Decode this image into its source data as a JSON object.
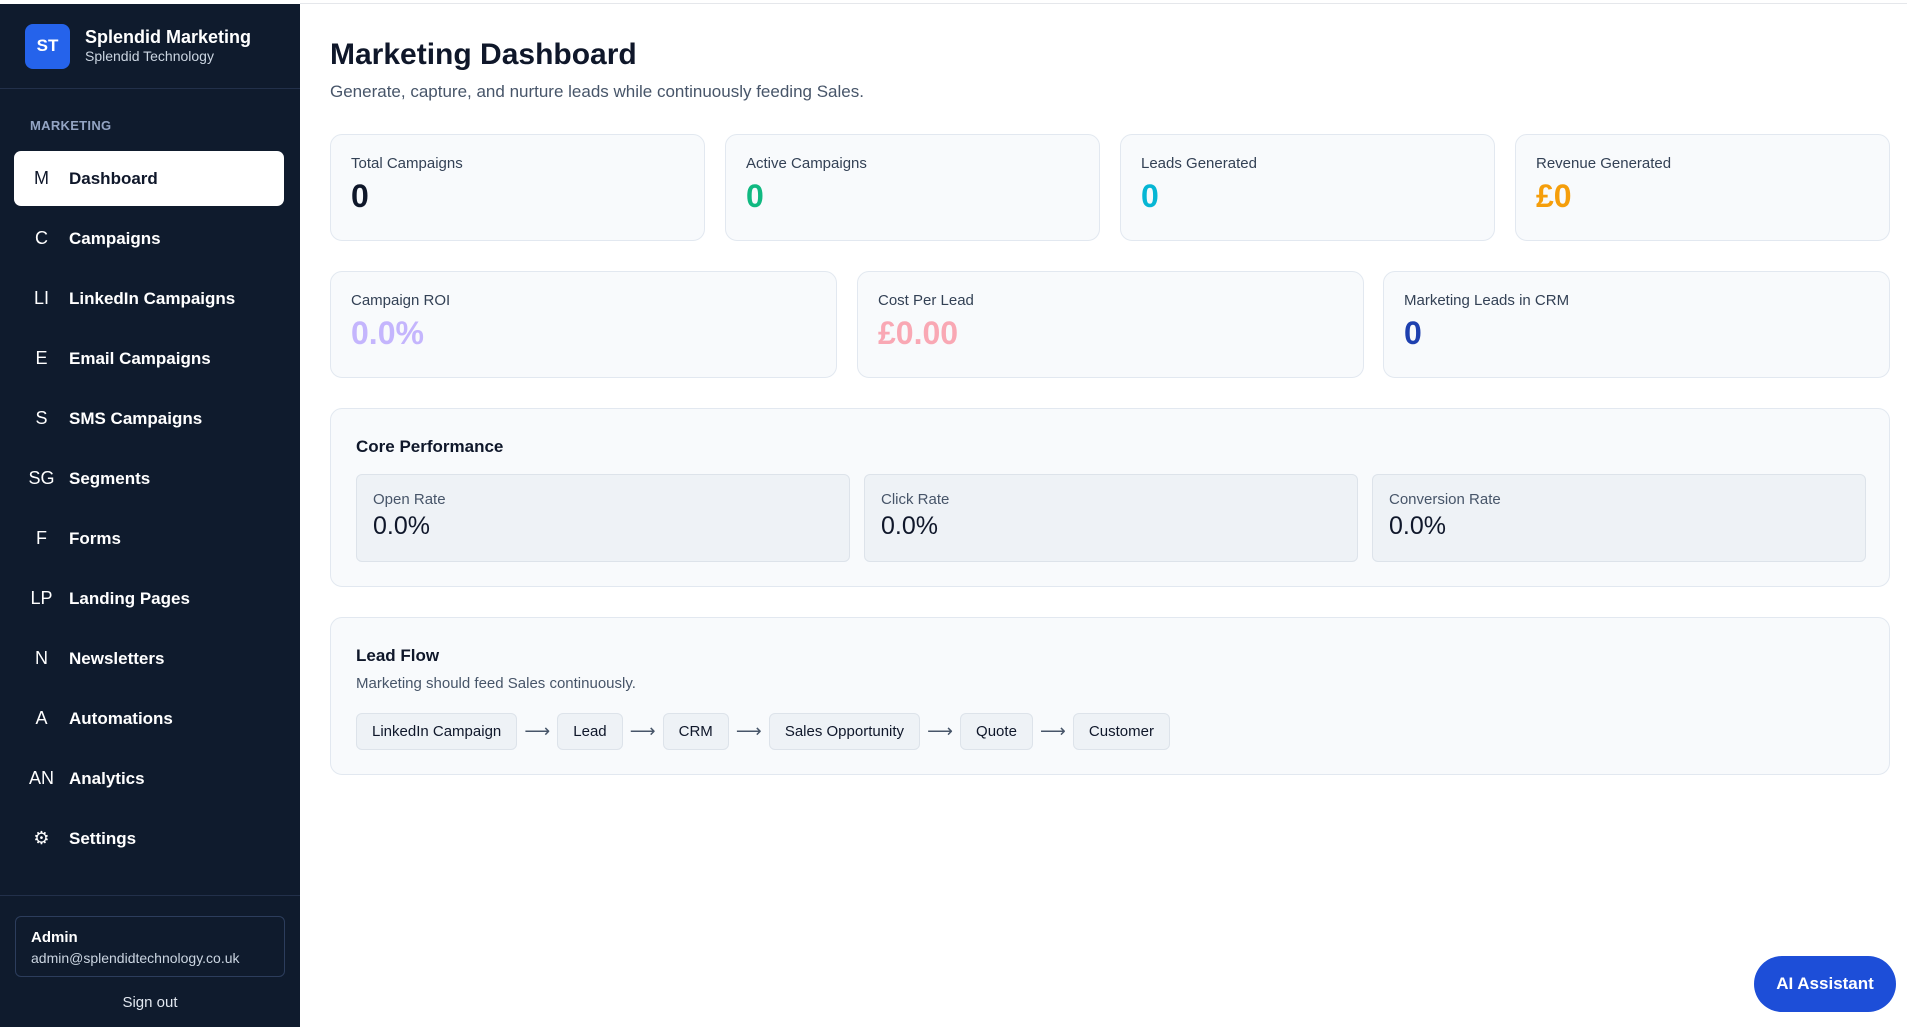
{
  "brand": {
    "logo": "ST",
    "title": "Splendid Marketing",
    "subtitle": "Splendid Technology"
  },
  "sidebar": {
    "section_label": "MARKETING",
    "items": [
      {
        "icon": "M",
        "label": "Dashboard",
        "active": true
      },
      {
        "icon": "C",
        "label": "Campaigns"
      },
      {
        "icon": "LI",
        "label": "LinkedIn Campaigns"
      },
      {
        "icon": "E",
        "label": "Email Campaigns"
      },
      {
        "icon": "S",
        "label": "SMS Campaigns"
      },
      {
        "icon": "SG",
        "label": "Segments"
      },
      {
        "icon": "F",
        "label": "Forms"
      },
      {
        "icon": "LP",
        "label": "Landing Pages"
      },
      {
        "icon": "N",
        "label": "Newsletters"
      },
      {
        "icon": "A",
        "label": "Automations"
      },
      {
        "icon": "AN",
        "label": "Analytics"
      },
      {
        "icon": "⚙",
        "label": "Settings"
      }
    ],
    "user": {
      "name": "Admin",
      "email": "admin@splendidtechnology.co.uk"
    },
    "signout": "Sign out"
  },
  "header": {
    "title": "Marketing Dashboard",
    "subtitle": "Generate, capture, and nurture leads while continuously feeding Sales."
  },
  "stats_row1": [
    {
      "label": "Total Campaigns",
      "value": "0",
      "color": "#0f172a"
    },
    {
      "label": "Active Campaigns",
      "value": "0",
      "color": "#10b981"
    },
    {
      "label": "Leads Generated",
      "value": "0",
      "color": "#06b6d4"
    },
    {
      "label": "Revenue Generated",
      "value": "£0",
      "color": "#f59e0b"
    }
  ],
  "stats_row2": [
    {
      "label": "Campaign ROI",
      "value": "0.0%",
      "color": "#c4b5fd"
    },
    {
      "label": "Cost Per Lead",
      "value": "£0.00",
      "color": "#f9a8b4"
    },
    {
      "label": "Marketing Leads in CRM",
      "value": "0",
      "color": "#1e40af"
    }
  ],
  "core_performance": {
    "title": "Core Performance",
    "metrics": [
      {
        "label": "Open Rate",
        "value": "0.0%"
      },
      {
        "label": "Click Rate",
        "value": "0.0%"
      },
      {
        "label": "Conversion Rate",
        "value": "0.0%"
      }
    ]
  },
  "lead_flow": {
    "title": "Lead Flow",
    "subtitle": "Marketing should feed Sales continuously.",
    "arrow": "⟶",
    "steps": [
      "LinkedIn Campaign",
      "Lead",
      "CRM",
      "Sales Opportunity",
      "Quote",
      "Customer"
    ]
  },
  "ai_button": "AI Assistant"
}
